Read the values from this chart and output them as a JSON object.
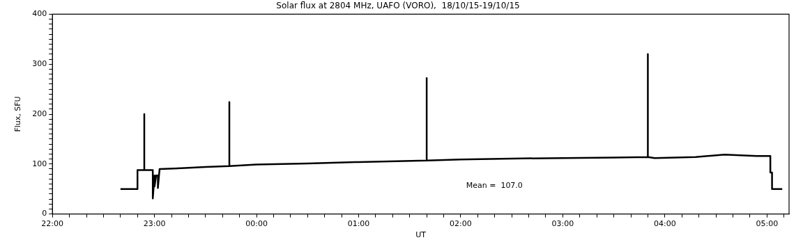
{
  "chart_data": {
    "type": "line",
    "title": "Solar flux at 2804 MHz, UAFO (VORO),  18/10/15-19/10/15",
    "xlabel": "UT",
    "ylabel": "Flux, SFU",
    "annotations": [
      "Mean =  107.0"
    ],
    "x": [
      "--10-18T22:40",
      "--10-18T22:50",
      "--10-18T22:50",
      "--10-18T22:54",
      "--10-18T22:54",
      "--10-18T22:54",
      "--10-18T22:59",
      "--10-18T22:59",
      "--10-18T23:00",
      "--10-18T23:00",
      "--10-18T23:01",
      "--10-18T23:02",
      "--10-18T23:02",
      "--10-18T23:03",
      "--10-18T23:18",
      "--10-18T23:30",
      "--10-18T23:44",
      "--10-18T23:44",
      "--10-18T23:44",
      "--10-19T00:00",
      "--10-19T00:30",
      "--10-19T01:00",
      "--10-19T01:40",
      "--10-19T01:40",
      "--10-19T01:40",
      "--10-19T02:00",
      "--10-19T02:30",
      "--10-19T03:00",
      "--10-19T03:30",
      "--10-19T03:50",
      "--10-19T03:50",
      "--10-19T03:50",
      "--10-19T03:54",
      "--10-19T04:18",
      "--10-19T04:35",
      "--10-19T04:54",
      "--10-19T05:02",
      "--10-19T05:02",
      "--10-19T05:03",
      "--10-19T05:03",
      "--10-19T05:09"
    ],
    "values": [
      50,
      50,
      88,
      88,
      200,
      88,
      88,
      31,
      77,
      55,
      77,
      77,
      52,
      90,
      92,
      94,
      96,
      224,
      96,
      99,
      101,
      104,
      107,
      272,
      107,
      109,
      111,
      112,
      113,
      114,
      320,
      114,
      112,
      114,
      119,
      116,
      116,
      83,
      83,
      50,
      50
    ],
    "color": "#000000",
    "marker": "none",
    "line_style": "solid",
    "legend": false,
    "grid": false,
    "xlim": [
      "--10-18T22:00",
      "--10-19T05:13"
    ],
    "ylim": [
      0,
      400
    ],
    "xticks": [
      {
        "value": "--10-18T22:00",
        "label": "22:00"
      },
      {
        "value": "--10-18T22:10",
        "label": null
      },
      {
        "value": "--10-18T22:20",
        "label": null
      },
      {
        "value": "--10-18T22:30",
        "label": null
      },
      {
        "value": "--10-18T22:40",
        "label": null
      },
      {
        "value": "--10-18T22:50",
        "label": null
      },
      {
        "value": "--10-18T23:00",
        "label": "23:00"
      },
      {
        "value": "--10-18T23:10",
        "label": null
      },
      {
        "value": "--10-18T23:20",
        "label": null
      },
      {
        "value": "--10-18T23:30",
        "label": null
      },
      {
        "value": "--10-18T23:40",
        "label": null
      },
      {
        "value": "--10-18T23:50",
        "label": null
      },
      {
        "value": "--10-19T00:00",
        "label": "00:00"
      },
      {
        "value": "--10-19T00:10",
        "label": null
      },
      {
        "value": "--10-19T00:20",
        "label": null
      },
      {
        "value": "--10-19T00:30",
        "label": null
      },
      {
        "value": "--10-19T00:40",
        "label": null
      },
      {
        "value": "--10-19T00:50",
        "label": null
      },
      {
        "value": "--10-19T01:00",
        "label": "01:00"
      },
      {
        "value": "--10-19T01:10",
        "label": null
      },
      {
        "value": "--10-19T01:20",
        "label": null
      },
      {
        "value": "--10-19T01:30",
        "label": null
      },
      {
        "value": "--10-19T01:40",
        "label": null
      },
      {
        "value": "--10-19T01:50",
        "label": null
      },
      {
        "value": "--10-19T02:00",
        "label": "02:00"
      },
      {
        "value": "--10-19T02:10",
        "label": null
      },
      {
        "value": "--10-19T02:20",
        "label": null
      },
      {
        "value": "--10-19T02:30",
        "label": null
      },
      {
        "value": "--10-19T02:40",
        "label": null
      },
      {
        "value": "--10-19T02:50",
        "label": null
      },
      {
        "value": "--10-19T03:00",
        "label": "03:00"
      },
      {
        "value": "--10-19T03:10",
        "label": null
      },
      {
        "value": "--10-19T03:20",
        "label": null
      },
      {
        "value": "--10-19T03:30",
        "label": null
      },
      {
        "value": "--10-19T03:40",
        "label": null
      },
      {
        "value": "--10-19T03:50",
        "label": null
      },
      {
        "value": "--10-19T04:00",
        "label": "04:00"
      },
      {
        "value": "--10-19T04:10",
        "label": null
      },
      {
        "value": "--10-19T04:20",
        "label": null
      },
      {
        "value": "--10-19T04:30",
        "label": null
      },
      {
        "value": "--10-19T04:40",
        "label": null
      },
      {
        "value": "--10-19T04:50",
        "label": null
      },
      {
        "value": "--10-19T05:00",
        "label": "05:00"
      },
      {
        "value": "--10-19T05:10",
        "label": null
      }
    ],
    "yticks": [
      0,
      {
        "value": 10,
        "label": null
      },
      {
        "value": 20,
        "label": null
      },
      {
        "value": 30,
        "label": null
      },
      {
        "value": 40,
        "label": null
      },
      {
        "value": 50,
        "label": null
      },
      {
        "value": 60,
        "label": null
      },
      {
        "value": 70,
        "label": null
      },
      {
        "value": 80,
        "label": null
      },
      {
        "value": 90,
        "label": null
      },
      100,
      {
        "value": 110,
        "label": null
      },
      {
        "value": 120,
        "label": null
      },
      {
        "value": 130,
        "label": null
      },
      {
        "value": 140,
        "label": null
      },
      {
        "value": 150,
        "label": null
      },
      {
        "value": 160,
        "label": null
      },
      {
        "value": 170,
        "label": null
      },
      {
        "value": 180,
        "label": null
      },
      {
        "value": 190,
        "label": null
      },
      200,
      {
        "value": 210,
        "label": null
      },
      {
        "value": 220,
        "label": null
      },
      {
        "value": 230,
        "label": null
      },
      {
        "value": 240,
        "label": null
      },
      {
        "value": 250,
        "label": null
      },
      {
        "value": 260,
        "label": null
      },
      {
        "value": 270,
        "label": null
      },
      {
        "value": 280,
        "label": null
      },
      {
        "value": 290,
        "label": null
      },
      300,
      {
        "value": 310,
        "label": null
      },
      {
        "value": 320,
        "label": null
      },
      {
        "value": 330,
        "label": null
      },
      {
        "value": 340,
        "label": null
      },
      {
        "value": 350,
        "label": null
      },
      {
        "value": 360,
        "label": null
      },
      {
        "value": 370,
        "label": null
      },
      {
        "value": 380,
        "label": null
      },
      {
        "value": 390,
        "label": null
      },
      400
    ]
  }
}
